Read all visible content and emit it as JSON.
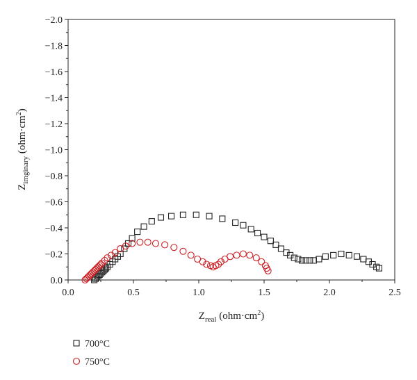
{
  "chart_data": {
    "type": "scatter",
    "title": "",
    "xlabel": {
      "main": "Z",
      "sub": "real",
      "unit_pre": " (ohm·cm",
      "sup": "2",
      "unit_post": ")"
    },
    "ylabel": {
      "main": "Z",
      "sub": "imginary",
      "unit_pre": " (ohm·cm",
      "sup": "2",
      "unit_post": ")"
    },
    "xlim": [
      0.0,
      2.5
    ],
    "ylim": [
      0.0,
      -2.0
    ],
    "y_inverted": true,
    "xticks": [
      0.0,
      0.5,
      1.0,
      1.5,
      2.0,
      2.5
    ],
    "xtick_labels": [
      "0.0",
      "0.5",
      "1.0",
      "1.5",
      "2.0",
      "2.5"
    ],
    "yticks": [
      0.0,
      -0.2,
      -0.4,
      -0.6,
      -0.8,
      -1.0,
      -1.2,
      -1.4,
      -1.6,
      -1.8,
      -2.0
    ],
    "ytick_labels": [
      "0.0",
      "−0.2",
      "−0.4",
      "−0.6",
      "−0.8",
      "−1.0",
      "−1.2",
      "−1.4",
      "−1.6",
      "−1.8",
      "−2.0"
    ],
    "grid": false,
    "legend_position": "bottom-left-below-plot",
    "series": [
      {
        "name": "700°C",
        "marker": "square",
        "color": "#222222",
        "x": [
          0.2,
          0.21,
          0.22,
          0.23,
          0.24,
          0.25,
          0.26,
          0.27,
          0.28,
          0.29,
          0.3,
          0.32,
          0.34,
          0.36,
          0.38,
          0.4,
          0.43,
          0.46,
          0.49,
          0.53,
          0.58,
          0.64,
          0.71,
          0.79,
          0.88,
          0.98,
          1.08,
          1.18,
          1.28,
          1.34,
          1.4,
          1.45,
          1.5,
          1.55,
          1.59,
          1.63,
          1.67,
          1.7,
          1.73,
          1.76,
          1.79,
          1.82,
          1.85,
          1.88,
          1.92,
          1.97,
          2.03,
          2.09,
          2.15,
          2.21,
          2.26,
          2.3,
          2.33,
          2.36,
          2.38
        ],
        "y": [
          0.0,
          -0.01,
          -0.02,
          -0.03,
          -0.04,
          -0.05,
          -0.06,
          -0.07,
          -0.08,
          -0.09,
          -0.1,
          -0.12,
          -0.14,
          -0.16,
          -0.18,
          -0.2,
          -0.24,
          -0.28,
          -0.32,
          -0.37,
          -0.41,
          -0.45,
          -0.48,
          -0.49,
          -0.5,
          -0.5,
          -0.49,
          -0.47,
          -0.44,
          -0.42,
          -0.39,
          -0.36,
          -0.33,
          -0.3,
          -0.27,
          -0.24,
          -0.21,
          -0.19,
          -0.17,
          -0.16,
          -0.15,
          -0.15,
          -0.15,
          -0.15,
          -0.16,
          -0.18,
          -0.19,
          -0.2,
          -0.19,
          -0.18,
          -0.16,
          -0.14,
          -0.12,
          -0.1,
          -0.09
        ]
      },
      {
        "name": "750°C",
        "marker": "circle",
        "color": "#cc1f24",
        "x": [
          0.13,
          0.14,
          0.15,
          0.16,
          0.17,
          0.18,
          0.19,
          0.2,
          0.21,
          0.22,
          0.23,
          0.24,
          0.25,
          0.26,
          0.28,
          0.3,
          0.33,
          0.36,
          0.4,
          0.44,
          0.49,
          0.55,
          0.61,
          0.67,
          0.74,
          0.81,
          0.88,
          0.94,
          0.99,
          1.03,
          1.06,
          1.09,
          1.11,
          1.13,
          1.15,
          1.17,
          1.2,
          1.24,
          1.29,
          1.34,
          1.39,
          1.44,
          1.48,
          1.51,
          1.52,
          1.53
        ],
        "y": [
          0.0,
          -0.01,
          -0.02,
          -0.03,
          -0.04,
          -0.05,
          -0.06,
          -0.07,
          -0.08,
          -0.09,
          -0.1,
          -0.11,
          -0.12,
          -0.13,
          -0.15,
          -0.17,
          -0.19,
          -0.21,
          -0.24,
          -0.26,
          -0.28,
          -0.29,
          -0.29,
          -0.28,
          -0.27,
          -0.25,
          -0.22,
          -0.19,
          -0.16,
          -0.14,
          -0.12,
          -0.11,
          -0.1,
          -0.11,
          -0.12,
          -0.14,
          -0.16,
          -0.18,
          -0.19,
          -0.2,
          -0.19,
          -0.17,
          -0.14,
          -0.11,
          -0.09,
          -0.07
        ]
      }
    ]
  }
}
